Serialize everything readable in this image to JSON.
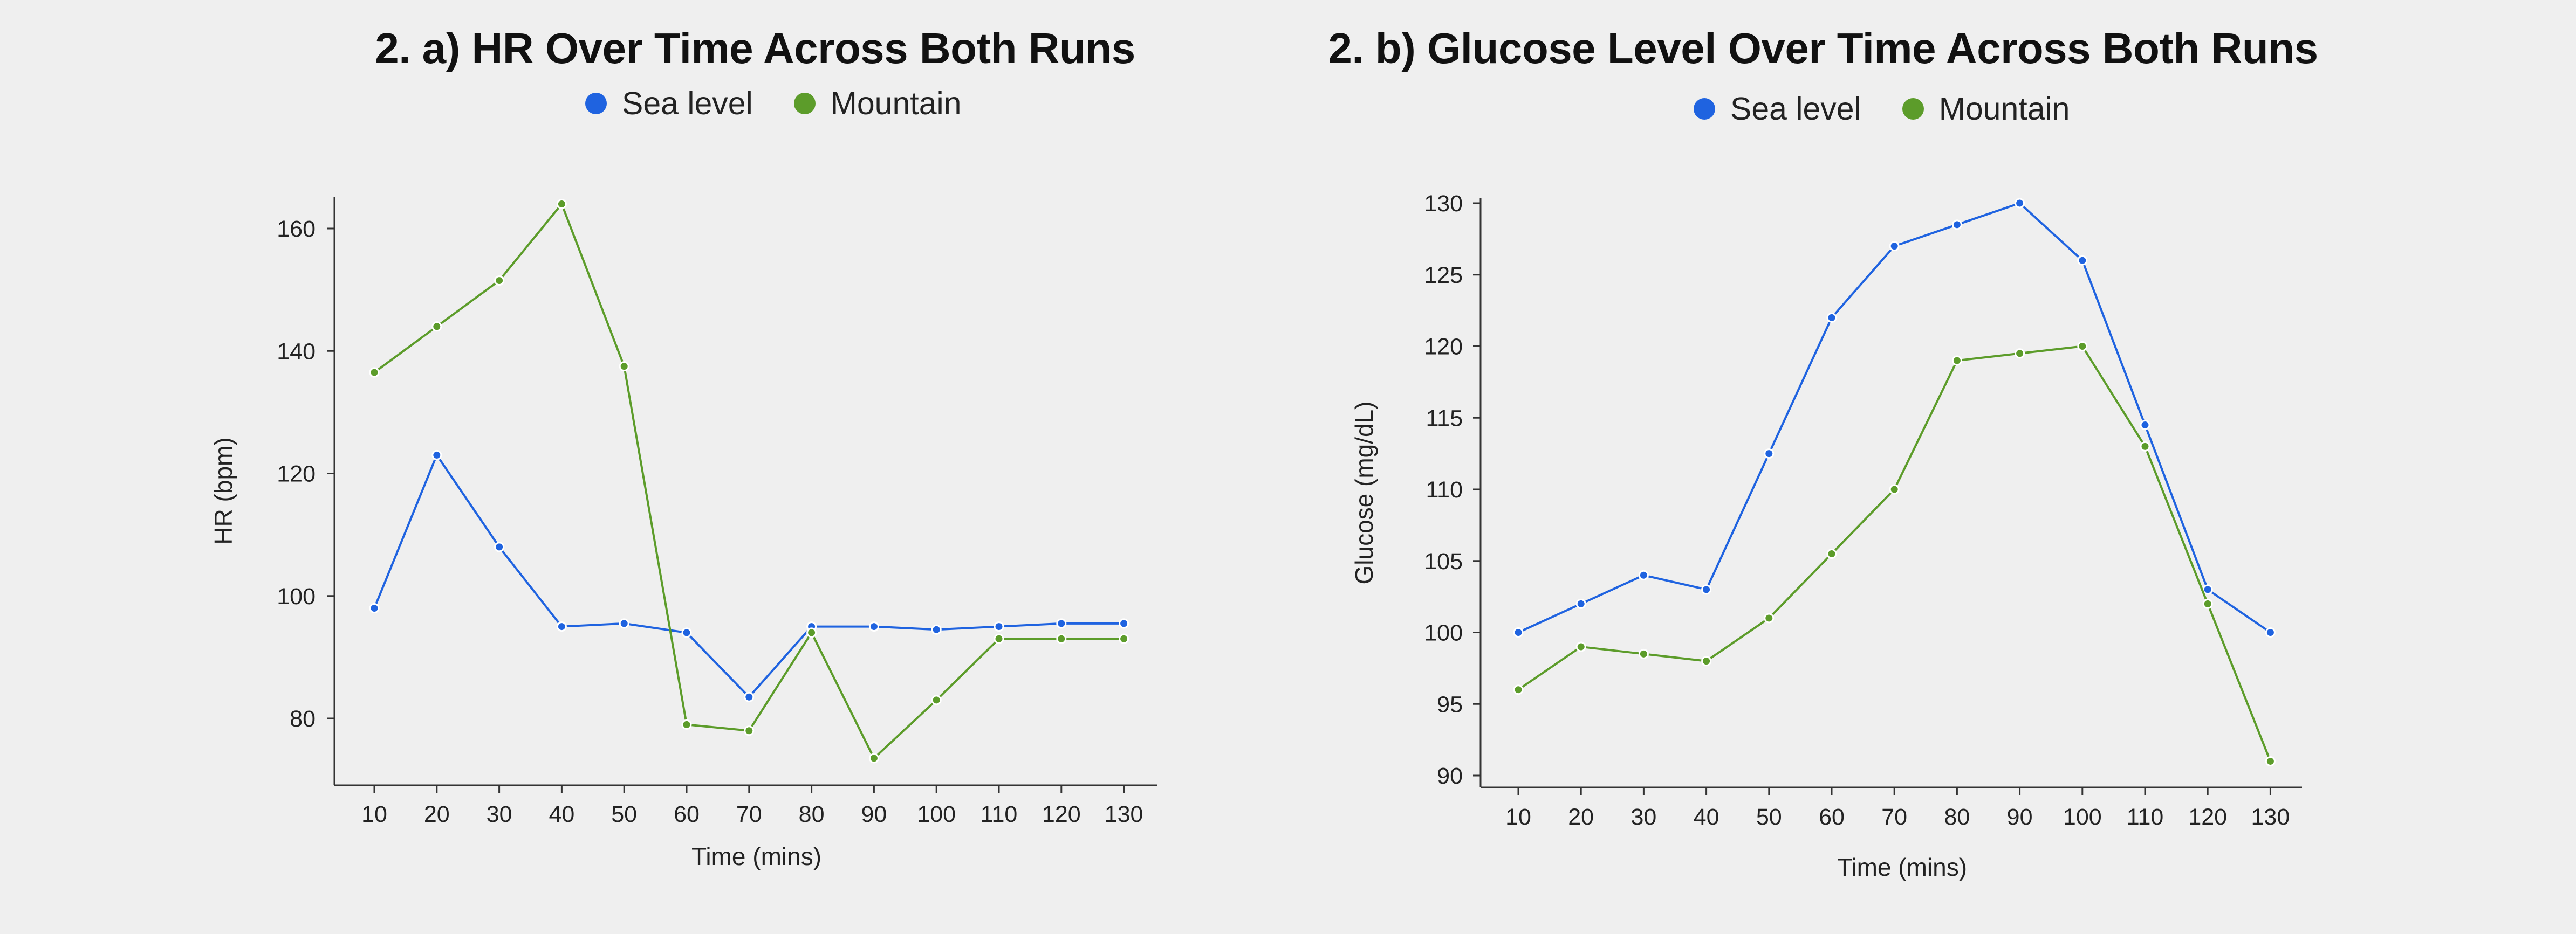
{
  "colors": {
    "sea_level": "#1f63e0",
    "mountain": "#5c9c2a",
    "axis": "#333333",
    "background": "#efefef"
  },
  "chart_data": [
    {
      "type": "line",
      "title": "2. a) HR Over Time Across Both Runs",
      "xlabel": "Time (mins)",
      "ylabel": "HR (bpm)",
      "legend": {
        "position": "top-center",
        "entries": [
          "Sea level",
          "Mountain"
        ]
      },
      "x": [
        10,
        20,
        30,
        40,
        50,
        60,
        70,
        80,
        90,
        100,
        110,
        120,
        130
      ],
      "x_ticks": [
        "10",
        "20",
        "30",
        "40",
        "50",
        "60",
        "70",
        "80",
        "90",
        "100",
        "110",
        "120",
        "130"
      ],
      "y_ticks": [
        "80",
        "100",
        "120",
        "140",
        "160"
      ],
      "y_tick_values": [
        80,
        100,
        120,
        140,
        160
      ],
      "ylim": [
        70,
        165
      ],
      "grid": false,
      "series": [
        {
          "name": "Sea level",
          "color": "#1f63e0",
          "values": [
            98,
            123,
            108,
            95,
            95.5,
            94,
            83.5,
            95,
            95,
            94.5,
            95,
            95.5,
            95.5
          ]
        },
        {
          "name": "Mountain",
          "color": "#5c9c2a",
          "values": [
            136.5,
            144,
            151.5,
            164,
            137.5,
            79,
            78,
            94,
            73.5,
            83,
            93,
            93,
            93
          ]
        }
      ]
    },
    {
      "type": "line",
      "title": "2. b) Glucose Level Over Time Across Both Runs",
      "xlabel": "Time (mins)",
      "ylabel": "Glucose (mg/dL)",
      "legend": {
        "position": "top-center",
        "entries": [
          "Sea level",
          "Mountain"
        ]
      },
      "x": [
        10,
        20,
        30,
        40,
        50,
        60,
        70,
        80,
        90,
        100,
        110,
        120,
        130
      ],
      "x_ticks": [
        "10",
        "20",
        "30",
        "40",
        "50",
        "60",
        "70",
        "80",
        "90",
        "100",
        "110",
        "120",
        "130"
      ],
      "y_ticks": [
        "90",
        "95",
        "100",
        "105",
        "110",
        "115",
        "120",
        "125",
        "130"
      ],
      "y_tick_values": [
        90,
        95,
        100,
        105,
        110,
        115,
        120,
        125,
        130
      ],
      "ylim": [
        89.5,
        130.5
      ],
      "grid": false,
      "series": [
        {
          "name": "Sea level",
          "color": "#1f63e0",
          "values": [
            100,
            102,
            104,
            103,
            112.5,
            122,
            127,
            128.5,
            130,
            126,
            114.5,
            103,
            100
          ]
        },
        {
          "name": "Mountain",
          "color": "#5c9c2a",
          "values": [
            96,
            99,
            98.5,
            98,
            101,
            105.5,
            110,
            119,
            119.5,
            120,
            113,
            102,
            91
          ]
        }
      ]
    }
  ]
}
